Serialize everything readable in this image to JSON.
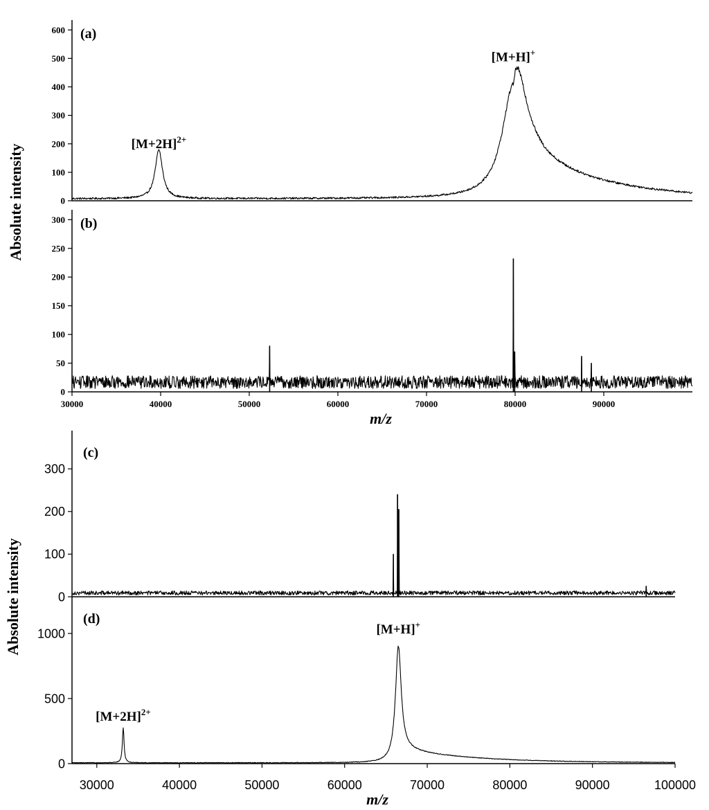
{
  "chart_data": [
    {
      "group": "top",
      "xlabel": "m/z",
      "ylabel": "Absolute intensity",
      "x_ticks": [
        "30000",
        "40000",
        "50000",
        "60000",
        "70000",
        "80000",
        "90000"
      ],
      "panels": [
        {
          "id": "a",
          "label": "(a)",
          "type": "line",
          "xlim": [
            30000,
            100000
          ],
          "ylim": [
            0,
            620
          ],
          "y_ticks": [
            "600",
            "500",
            "400",
            "300",
            "200",
            "100",
            "0"
          ],
          "y_tick_values": [
            600,
            500,
            400,
            300,
            200,
            100,
            0
          ],
          "baseline": 5,
          "noise": 4,
          "peaks": [
            {
              "x": 39800,
              "height": 170,
              "width": 500
            },
            {
              "x": 79800,
              "height": 400,
              "width": 1500,
              "tail": 0.45
            }
          ],
          "annotations": [
            {
              "text": "[M+2H]",
              "sup": "2+",
              "x": 39800,
              "y": 185
            },
            {
              "text": "[M+H]",
              "sup": "+",
              "x": 79800,
              "y": 490
            }
          ]
        },
        {
          "id": "b",
          "label": "(b)",
          "type": "line",
          "xlim": [
            30000,
            100000
          ],
          "ylim": [
            0,
            310
          ],
          "y_ticks": [
            "300",
            "250",
            "200",
            "150",
            "100",
            "50",
            "0"
          ],
          "y_tick_values": [
            300,
            250,
            200,
            150,
            100,
            50,
            0
          ],
          "baseline": 10,
          "noise": 14,
          "spikes": [
            {
              "x": 52300,
              "value": 80
            },
            {
              "x": 79800,
              "value": 232
            },
            {
              "x": 79950,
              "value": 70
            },
            {
              "x": 87500,
              "value": 62
            },
            {
              "x": 88600,
              "value": 50
            }
          ]
        }
      ]
    },
    {
      "group": "bottom",
      "xlabel": "m/z",
      "ylabel": "Absolute intensity",
      "x_ticks": [
        "30000",
        "40000",
        "50000",
        "60000",
        "70000",
        "80000",
        "90000",
        "100000"
      ],
      "panels": [
        {
          "id": "c",
          "label": "(c)",
          "type": "line",
          "xlim": [
            27000,
            100000
          ],
          "ylim": [
            0,
            380
          ],
          "y_ticks": [
            "300",
            "200",
            "100",
            "0"
          ],
          "y_tick_values": [
            300,
            200,
            100,
            0
          ],
          "baseline": 6,
          "noise": 6,
          "spikes": [
            {
              "x": 65900,
              "value": 100
            },
            {
              "x": 66400,
              "value": 240
            },
            {
              "x": 66550,
              "value": 205
            },
            {
              "x": 96500,
              "value": 25
            }
          ]
        },
        {
          "id": "d",
          "label": "(d)",
          "type": "line",
          "xlim": [
            27000,
            100000
          ],
          "ylim": [
            0,
            1250
          ],
          "y_ticks": [
            "1000",
            "500",
            "0"
          ],
          "y_tick_values": [
            1000,
            500,
            0
          ],
          "baseline": 5,
          "noise": 3,
          "peaks": [
            {
              "x": 33200,
              "height": 270,
              "width": 120
            },
            {
              "x": 66500,
              "height": 890,
              "width": 420,
              "tail": 0.12
            }
          ],
          "annotations": [
            {
              "text": "[M+2H]",
              "sup": "2+",
              "x": 33200,
              "y": 330
            },
            {
              "text": "[M+H]",
              "sup": "+",
              "x": 66500,
              "y": 1000
            }
          ]
        }
      ]
    }
  ]
}
